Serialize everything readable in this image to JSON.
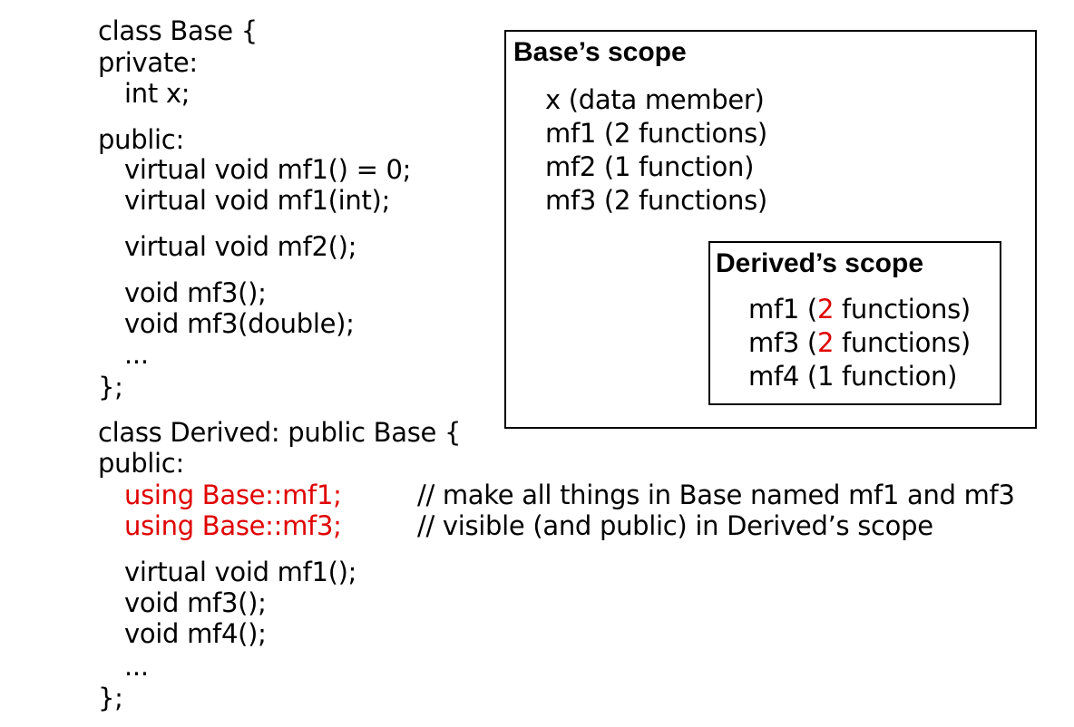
{
  "base_class": {
    "header": "class Base {",
    "private_label": "private:",
    "member_x": "int x;",
    "public_label": "public:",
    "mf1_pure": "virtual void mf1() = 0;",
    "mf1_int": "virtual void mf1(int);",
    "mf2": "virtual void mf2();",
    "mf3": "void mf3();",
    "mf3_double": "void mf3(double);",
    "ellipsis": "...",
    "close": "};"
  },
  "derived_class": {
    "header": "class Derived: public Base {",
    "public_label": "public:",
    "using_mf1": "using Base::mf1;",
    "using_mf3": "using Base::mf3;",
    "comment_1": "// make all things in Base named mf1 and mf3",
    "comment_2": "// visible (and public) in Derived’s scope",
    "mf1": "virtual void mf1();",
    "mf3": "void mf3();",
    "mf4": "void mf4();",
    "ellipsis": "...",
    "close": "};"
  },
  "base_scope": {
    "title": "Base’s scope",
    "items": [
      "x (data member)",
      "mf1 (2 functions)",
      "mf2 (1 function)",
      "mf3 (2 functions)"
    ]
  },
  "derived_scope": {
    "title": "Derived’s scope",
    "items": [
      {
        "prefix": "mf1 (",
        "count": "2",
        "suffix": " functions)"
      },
      {
        "prefix": "mf3 (",
        "count": "2",
        "suffix": " functions)"
      },
      {
        "prefix": "mf4 (",
        "count": "1",
        "suffix": " function)"
      }
    ]
  },
  "colors": {
    "highlight": "#e00000",
    "text": "#000000"
  }
}
